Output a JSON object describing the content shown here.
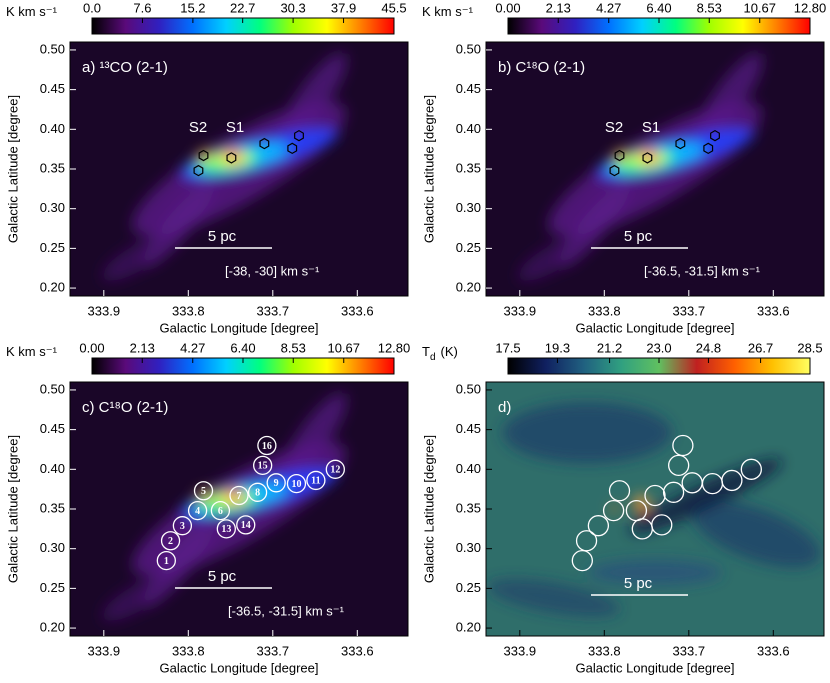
{
  "chart_data": [
    {
      "type": "image",
      "panel_label": "a) ¹³CO (2-1)",
      "xlabel": "Galactic Longitude [degree]",
      "ylabel": "Galactic Latitude [degree]",
      "xlim": [
        333.94,
        333.54
      ],
      "ylim": [
        0.19,
        0.51
      ],
      "xticks": [
        333.9,
        333.8,
        333.7,
        333.6
      ],
      "yticks": [
        {
          "value": 0.2,
          "label": "0.20"
        },
        0.25,
        {
          "value": 0.3,
          "label": "0.30"
        },
        0.35,
        {
          "value": 0.4,
          "label": "0.40"
        },
        0.45,
        {
          "value": 0.5,
          "label": "0.50"
        }
      ],
      "colorbar": {
        "label": "K km s⁻¹",
        "lim": [
          0,
          45.5
        ],
        "ticks": [
          {
            "value": 0,
            "label": "0.0"
          },
          7.6,
          15.2,
          22.7,
          30.3,
          37.9,
          45.5
        ],
        "colors": [
          "#000000",
          "#5a0a7a",
          "#3020c0",
          "#0070ff",
          "#00d0ff",
          "#00ff80",
          "#a0ff00",
          "#ffff00",
          "#ff8000",
          "#ff0000"
        ]
      },
      "source_labels": [
        "S2",
        "S1"
      ],
      "scale_bar": "5 pc",
      "velocity_range": "[-38, -30] km s⁻¹",
      "markers": [
        {
          "x": 333.782,
          "y": 0.367
        },
        {
          "x": 333.749,
          "y": 0.364
        },
        {
          "x": 333.788,
          "y": 0.348
        },
        {
          "x": 333.71,
          "y": 0.382
        },
        {
          "x": 333.677,
          "y": 0.376
        },
        {
          "x": 333.669,
          "y": 0.392
        }
      ]
    },
    {
      "type": "image",
      "panel_label": "b) C¹⁸O (2-1)",
      "xlabel": "Galactic Longitude [degree]",
      "ylabel": "Galactic Latitude [degree]",
      "xlim": [
        333.94,
        333.54
      ],
      "ylim": [
        0.19,
        0.51
      ],
      "xticks": [
        333.9,
        333.8,
        333.7,
        333.6
      ],
      "yticks": [
        {
          "value": 0.2,
          "label": "0.20"
        },
        0.25,
        {
          "value": 0.3,
          "label": "0.30"
        },
        0.35,
        {
          "value": 0.4,
          "label": "0.40"
        },
        0.45,
        {
          "value": 0.5,
          "label": "0.50"
        }
      ],
      "colorbar": {
        "label": "K km s⁻¹",
        "lim": [
          0,
          12.8
        ],
        "ticks": [
          {
            "value": 0,
            "label": "0.00"
          },
          2.13,
          4.27,
          {
            "value": 6.4,
            "label": "6.40"
          },
          8.53,
          10.67,
          {
            "value": 12.8,
            "label": "12.80"
          }
        ],
        "colors": [
          "#000000",
          "#5a0a7a",
          "#3020c0",
          "#0070ff",
          "#00d0ff",
          "#00ff80",
          "#a0ff00",
          "#ffff00",
          "#ff8000",
          "#ff0000"
        ]
      },
      "source_labels": [
        "S2",
        "S1"
      ],
      "scale_bar": "5 pc",
      "velocity_range": "[-36.5, -31.5] km s⁻¹",
      "markers": [
        {
          "x": 333.782,
          "y": 0.367
        },
        {
          "x": 333.749,
          "y": 0.364
        },
        {
          "x": 333.788,
          "y": 0.348
        },
        {
          "x": 333.71,
          "y": 0.382
        },
        {
          "x": 333.677,
          "y": 0.376
        },
        {
          "x": 333.669,
          "y": 0.392
        }
      ]
    },
    {
      "type": "image",
      "panel_label": "c) C¹⁸O (2-1)",
      "xlabel": "Galactic Longitude [degree]",
      "ylabel": "Galactic Latitude [degree]",
      "xlim": [
        333.94,
        333.54
      ],
      "ylim": [
        0.19,
        0.51
      ],
      "xticks": [
        333.9,
        333.8,
        333.7,
        333.6
      ],
      "yticks": [
        {
          "value": 0.2,
          "label": "0.20"
        },
        0.25,
        {
          "value": 0.3,
          "label": "0.30"
        },
        0.35,
        {
          "value": 0.4,
          "label": "0.40"
        },
        0.45,
        {
          "value": 0.5,
          "label": "0.50"
        }
      ],
      "colorbar": {
        "label": "K km s⁻¹",
        "lim": [
          0,
          12.8
        ],
        "ticks": [
          {
            "value": 0,
            "label": "0.00"
          },
          2.13,
          4.27,
          {
            "value": 6.4,
            "label": "6.40"
          },
          8.53,
          10.67,
          {
            "value": 12.8,
            "label": "12.80"
          }
        ],
        "colors": [
          "#000000",
          "#5a0a7a",
          "#3020c0",
          "#0070ff",
          "#00d0ff",
          "#00ff80",
          "#a0ff00",
          "#ffff00",
          "#ff8000",
          "#ff0000"
        ]
      },
      "scale_bar": "5 pc",
      "velocity_range": "[-36.5, -31.5] km s⁻¹",
      "circles": [
        {
          "label": "1",
          "x": 333.826,
          "y": 0.285
        },
        {
          "label": "2",
          "x": 333.821,
          "y": 0.31
        },
        {
          "label": "3",
          "x": 333.807,
          "y": 0.329
        },
        {
          "label": "4",
          "x": 333.789,
          "y": 0.348
        },
        {
          "label": "5",
          "x": 333.782,
          "y": 0.373
        },
        {
          "label": "6",
          "x": 333.762,
          "y": 0.348
        },
        {
          "label": "7",
          "x": 333.74,
          "y": 0.367
        },
        {
          "label": "8",
          "x": 333.718,
          "y": 0.371
        },
        {
          "label": "9",
          "x": 333.696,
          "y": 0.383
        },
        {
          "label": "10",
          "x": 333.672,
          "y": 0.382
        },
        {
          "label": "11",
          "x": 333.649,
          "y": 0.386
        },
        {
          "label": "12",
          "x": 333.626,
          "y": 0.4
        },
        {
          "label": "13",
          "x": 333.755,
          "y": 0.325
        },
        {
          "label": "14",
          "x": 333.732,
          "y": 0.33
        },
        {
          "label": "15",
          "x": 333.712,
          "y": 0.405
        },
        {
          "label": "16",
          "x": 333.707,
          "y": 0.43
        }
      ]
    },
    {
      "type": "image",
      "panel_label": "d)",
      "xlabel": "Galactic Longitude [degree]",
      "ylabel": "Galactic Latitude [degree]",
      "xlim": [
        333.94,
        333.54
      ],
      "ylim": [
        0.19,
        0.51
      ],
      "xticks": [
        333.9,
        333.8,
        333.7,
        333.6
      ],
      "yticks": [
        {
          "value": 0.2,
          "label": "0.20"
        },
        0.25,
        {
          "value": 0.3,
          "label": "0.30"
        },
        0.35,
        {
          "value": 0.4,
          "label": "0.40"
        },
        0.45,
        {
          "value": 0.5,
          "label": "0.50"
        }
      ],
      "colorbar": {
        "label": "T",
        "label_subscript": "d",
        "label_unit": "(K)",
        "lim": [
          17.5,
          28.5
        ],
        "ticks": [
          17.5,
          19.3,
          21.2,
          {
            "value": 23,
            "label": "23.0"
          },
          24.8,
          26.7,
          28.5
        ],
        "colors": [
          "#000000",
          "#102060",
          "#206080",
          "#30a080",
          "#60c060",
          "#c02020",
          "#ff6000",
          "#ffc000",
          "#ffff60"
        ]
      },
      "scale_bar": "5 pc",
      "circles": [
        {
          "x": 333.826,
          "y": 0.285
        },
        {
          "x": 333.821,
          "y": 0.31
        },
        {
          "x": 333.807,
          "y": 0.329
        },
        {
          "x": 333.789,
          "y": 0.348
        },
        {
          "x": 333.782,
          "y": 0.373
        },
        {
          "x": 333.762,
          "y": 0.348
        },
        {
          "x": 333.74,
          "y": 0.367
        },
        {
          "x": 333.718,
          "y": 0.371
        },
        {
          "x": 333.696,
          "y": 0.383
        },
        {
          "x": 333.672,
          "y": 0.382
        },
        {
          "x": 333.649,
          "y": 0.386
        },
        {
          "x": 333.626,
          "y": 0.4
        },
        {
          "x": 333.755,
          "y": 0.325
        },
        {
          "x": 333.732,
          "y": 0.33
        },
        {
          "x": 333.712,
          "y": 0.405
        },
        {
          "x": 333.707,
          "y": 0.43
        }
      ]
    }
  ]
}
